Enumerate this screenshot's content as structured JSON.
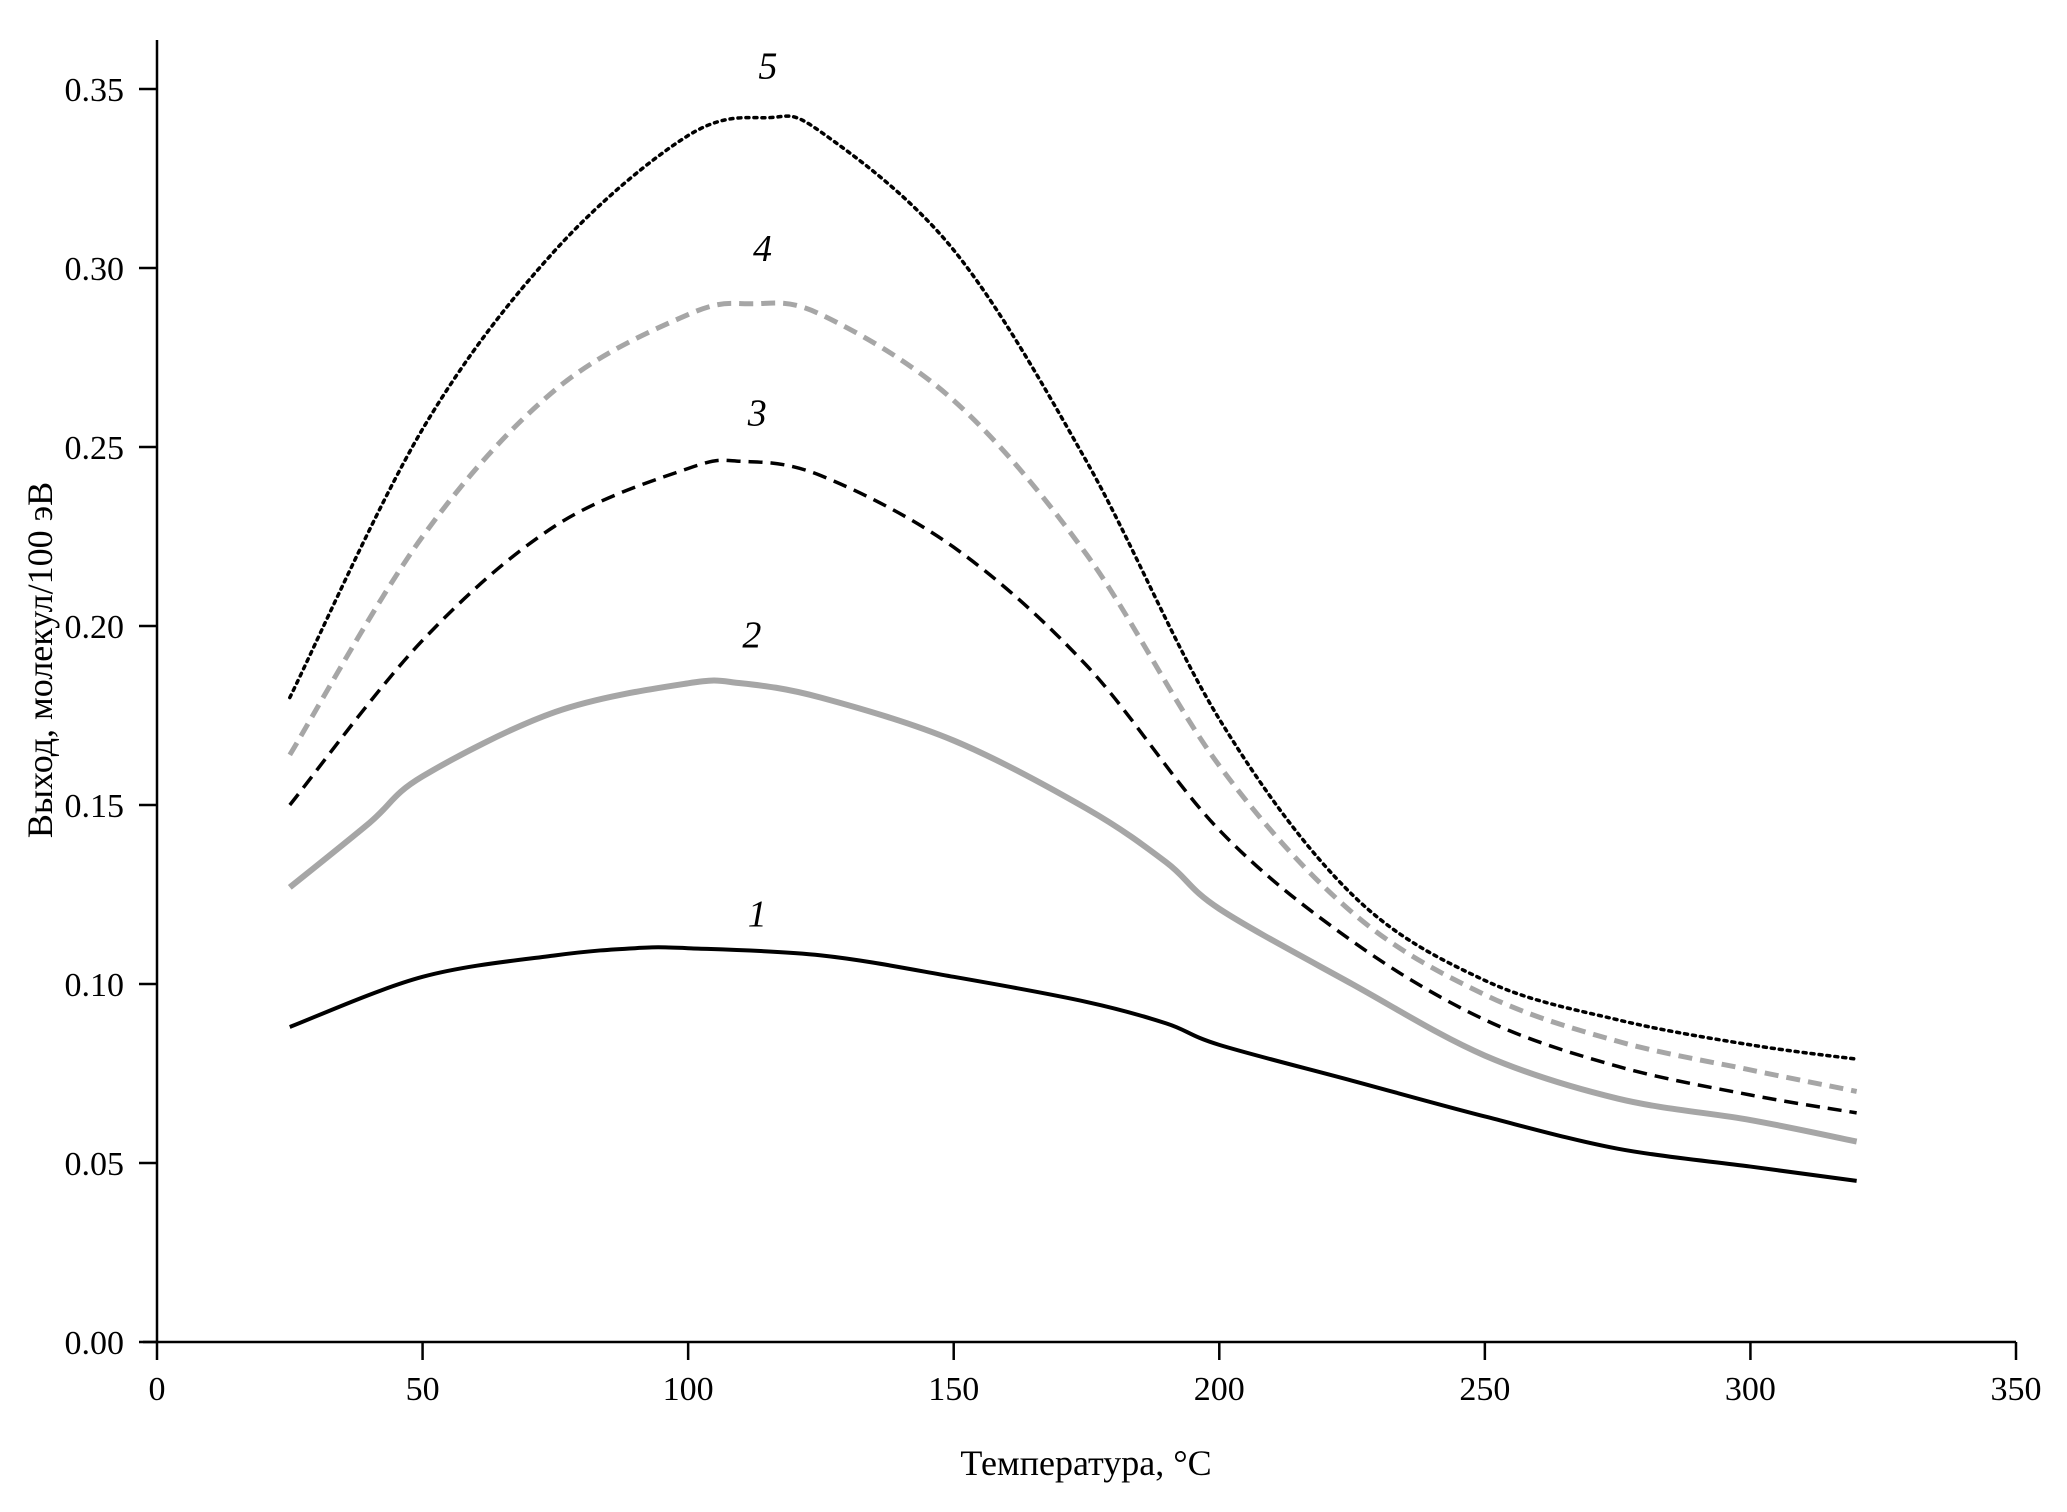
{
  "chart_data": {
    "type": "line",
    "title": "",
    "xlabel": "Температура, °C",
    "ylabel": "Выход, молекул/100 эВ",
    "xlim": [
      0,
      350
    ],
    "ylim": [
      0,
      0.35
    ],
    "xticks": [
      "0",
      "50",
      "100",
      "150",
      "200",
      "250",
      "300",
      "350"
    ],
    "yticks": [
      "0.00",
      "0.05",
      "0.10",
      "0.15",
      "0.20",
      "0.25",
      "0.30",
      "0.35"
    ],
    "grid": false,
    "legend": "none (curves labeled inline 1–5)",
    "series": [
      {
        "name": "1",
        "color": "#000000",
        "style": "solid",
        "x": [
          25,
          50,
          75,
          90,
          100,
          125,
          150,
          175,
          190,
          200,
          225,
          250,
          275,
          300,
          320
        ],
        "y": [
          0.088,
          0.102,
          0.108,
          0.11,
          0.11,
          0.108,
          0.102,
          0.095,
          0.089,
          0.083,
          0.073,
          0.063,
          0.054,
          0.049,
          0.045
        ],
        "label_at": [
          113,
          0.116
        ]
      },
      {
        "name": "2",
        "color": "#a6a6a6",
        "style": "solid",
        "x": [
          25,
          40,
          50,
          75,
          100,
          110,
          125,
          150,
          175,
          190,
          200,
          225,
          250,
          275,
          300,
          320
        ],
        "y": [
          0.127,
          0.145,
          0.158,
          0.176,
          0.184,
          0.184,
          0.18,
          0.168,
          0.149,
          0.134,
          0.121,
          0.1,
          0.08,
          0.068,
          0.062,
          0.056
        ],
        "label_at": [
          112,
          0.194
        ]
      },
      {
        "name": "3",
        "color": "#000000",
        "style": "dashed",
        "x": [
          25,
          50,
          75,
          100,
          110,
          125,
          150,
          175,
          200,
          225,
          250,
          275,
          300,
          320
        ],
        "y": [
          0.15,
          0.196,
          0.228,
          0.244,
          0.246,
          0.242,
          0.222,
          0.189,
          0.143,
          0.112,
          0.09,
          0.077,
          0.069,
          0.064
        ],
        "label_at": [
          113,
          0.256
        ]
      },
      {
        "name": "4",
        "color": "#a6a6a6",
        "style": "dashed",
        "x": [
          25,
          50,
          75,
          100,
          112,
          125,
          150,
          175,
          200,
          225,
          250,
          275,
          300,
          320
        ],
        "y": [
          0.164,
          0.225,
          0.266,
          0.287,
          0.29,
          0.287,
          0.263,
          0.22,
          0.161,
          0.12,
          0.097,
          0.084,
          0.076,
          0.07
        ],
        "label_at": [
          114,
          0.302
        ]
      },
      {
        "name": "5",
        "color": "#000000",
        "style": "dotted",
        "x": [
          25,
          50,
          75,
          100,
          115,
          125,
          150,
          175,
          200,
          225,
          250,
          275,
          300,
          320
        ],
        "y": [
          0.18,
          0.255,
          0.305,
          0.337,
          0.342,
          0.338,
          0.305,
          0.246,
          0.174,
          0.125,
          0.101,
          0.09,
          0.083,
          0.079
        ],
        "label_at": [
          115,
          0.353
        ]
      }
    ]
  }
}
